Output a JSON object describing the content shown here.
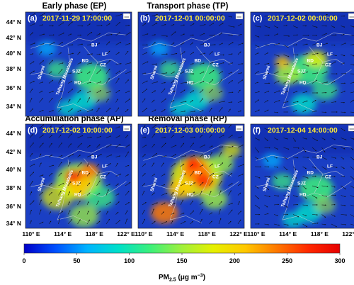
{
  "phases": {
    "ep": "Early phase (EP)",
    "tp": "Transport phase (TP)",
    "ap": "Accumulation phase (AP)",
    "rp": "Removal phase (RP)"
  },
  "latitude_ticks": [
    "44° N",
    "42° N",
    "40° N",
    "38° N",
    "36° N",
    "34° N"
  ],
  "longitude_ticks": [
    "110° E",
    "114° E",
    "118° E",
    "122° E"
  ],
  "place_labels": {
    "bj": "BJ",
    "lf": "LF",
    "bd": "BD",
    "cz": "CZ",
    "sjz": "SJZ",
    "hd": "HD",
    "shanxi": "Shanxi",
    "taihang": "Taihang Mountains"
  },
  "panels": [
    {
      "letter": "(a)",
      "time": "2017-11-29 17:00:00",
      "phase": "Early phase (EP)",
      "pollution_level": "low"
    },
    {
      "letter": "(b)",
      "time": "2017-12-01 00:00:00",
      "phase": "Transport phase (TP)",
      "pollution_level": "low"
    },
    {
      "letter": "(c)",
      "time": "2017-12-02 00:00:00",
      "phase": "Transport phase (TP)",
      "pollution_level": "moderate"
    },
    {
      "letter": "(d)",
      "time": "2017-12-02 10:00:00",
      "phase": "Accumulation phase (AP)",
      "pollution_level": "high"
    },
    {
      "letter": "(e)",
      "time": "2017-12-03 00:00:00",
      "phase": "Removal phase (RP)",
      "pollution_level": "very high"
    },
    {
      "letter": "(f)",
      "time": "2017-12-04 14:00:00",
      "phase": "Removal phase (RP)",
      "pollution_level": "low"
    }
  ],
  "colorbar": {
    "ticks": [
      "0",
      "50",
      "100",
      "150",
      "200",
      "250",
      "300"
    ],
    "label_prefix": "PM",
    "label_sub": "2.5",
    "label_unit_pre": " (μg m",
    "label_unit_sup": "−3",
    "label_unit_post": ")",
    "min": 0,
    "max": 300,
    "colors": [
      "#0000c8",
      "#0050ff",
      "#00b4ff",
      "#00e0c8",
      "#3cf07a",
      "#a0f03c",
      "#e6f000",
      "#ffc800",
      "#ff7800",
      "#ff2800",
      "#e60000"
    ]
  },
  "colors": {
    "map_background": "#1a3fc4",
    "vector": "#101010",
    "boundary": "#d8d8d8",
    "timestamp": "#ffeb3b"
  }
}
